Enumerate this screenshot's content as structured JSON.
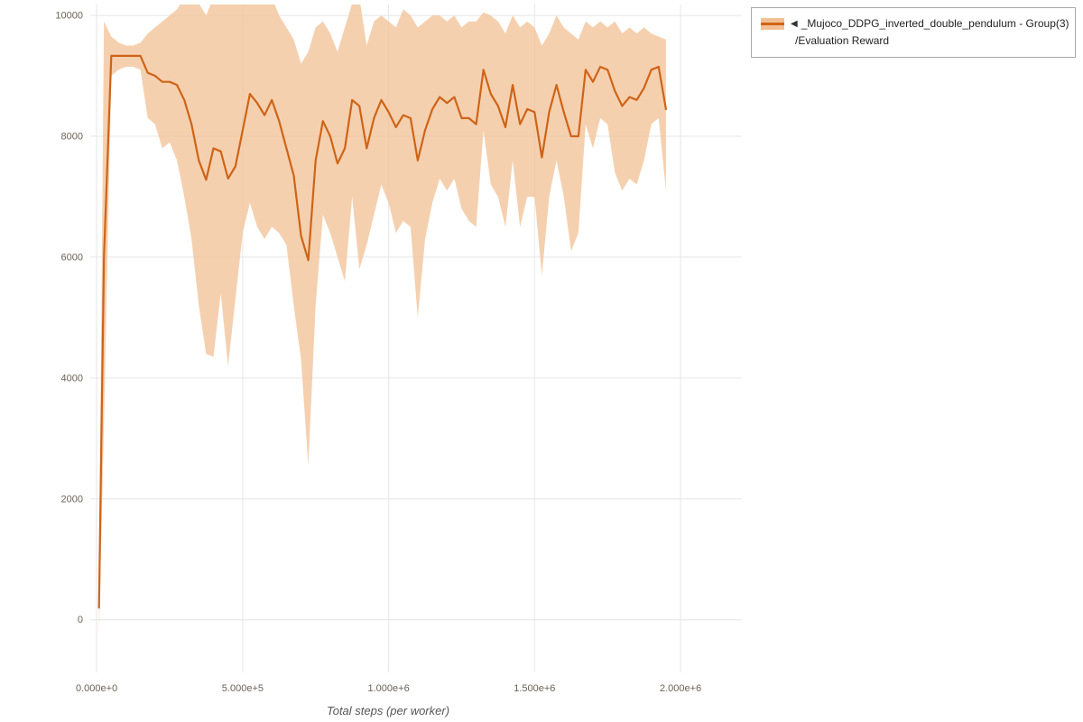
{
  "page": {
    "background": "#ffffff"
  },
  "legend": {
    "collapse_icon": "◀",
    "series_label": "_Mujoco_DDPG_inverted_double_pendulum - Group(3)",
    "metric_label": "/Evaluation Reward"
  },
  "axes": {
    "x_title": "Total steps (per worker)",
    "x_tick_labels": [
      "0.000e+0",
      "5.000e+5",
      "1.000e+6",
      "1.500e+6",
      "2.000e+6"
    ],
    "x_tick_values": [
      0,
      500000,
      1000000,
      1500000,
      2000000
    ],
    "y_tick_labels": [
      "0",
      "2000",
      "4000",
      "6000",
      "8000",
      "10000"
    ],
    "y_tick_values": [
      0,
      2000,
      4000,
      6000,
      8000,
      10000
    ]
  },
  "chart_data": {
    "type": "line",
    "title": "",
    "xlabel": "Total steps (per worker)",
    "ylabel": "",
    "grid": true,
    "legend_position": "top-right",
    "line_color": "#cf6417",
    "band_color": "#f2c094",
    "xlim": [
      -22000,
      2210000
    ],
    "ylim": [
      -870,
      10180
    ],
    "series": [
      {
        "name": "_Mujoco_DDPG_inverted_double_pendulum - Group(3) /Evaluation Reward",
        "x": [
          8000,
          25000,
          50000,
          75000,
          100000,
          125000,
          150000,
          175000,
          200000,
          225000,
          250000,
          275000,
          300000,
          325000,
          350000,
          375000,
          400000,
          425000,
          450000,
          475000,
          500000,
          525000,
          550000,
          575000,
          600000,
          625000,
          650000,
          675000,
          700000,
          725000,
          750000,
          775000,
          800000,
          825000,
          850000,
          875000,
          900000,
          925000,
          950000,
          975000,
          1000000,
          1025000,
          1050000,
          1075000,
          1100000,
          1125000,
          1150000,
          1175000,
          1200000,
          1225000,
          1250000,
          1275000,
          1300000,
          1325000,
          1350000,
          1375000,
          1400000,
          1425000,
          1450000,
          1475000,
          1500000,
          1525000,
          1550000,
          1575000,
          1600000,
          1625000,
          1650000,
          1675000,
          1700000,
          1725000,
          1750000,
          1775000,
          1800000,
          1825000,
          1850000,
          1875000,
          1900000,
          1925000,
          1950000
        ],
        "mean": [
          200,
          6000,
          9330,
          9330,
          9330,
          9330,
          9330,
          9050,
          9000,
          8900,
          8900,
          8850,
          8600,
          8200,
          7600,
          7280,
          7800,
          7750,
          7300,
          7500,
          8100,
          8700,
          8550,
          8350,
          8600,
          8250,
          7800,
          7350,
          6350,
          5950,
          7600,
          8250,
          8000,
          7550,
          7800,
          8600,
          8500,
          7800,
          8300,
          8600,
          8400,
          8150,
          8350,
          8300,
          7600,
          8100,
          8450,
          8650,
          8550,
          8650,
          8300,
          8300,
          8200,
          9100,
          8700,
          8500,
          8150,
          8850,
          8200,
          8450,
          8400,
          7650,
          8400,
          8850,
          8400,
          8000,
          8000,
          9100,
          8900,
          9150,
          9100,
          8750,
          8500,
          8650,
          8600,
          8800,
          9100,
          9150,
          8450
        ],
        "lower": [
          -250,
          3200,
          9000,
          9100,
          9150,
          9150,
          9100,
          8300,
          8200,
          7800,
          7900,
          7600,
          7000,
          6300,
          5200,
          4400,
          4350,
          5400,
          4200,
          5300,
          6400,
          6900,
          6500,
          6300,
          6500,
          6400,
          6200,
          5200,
          4300,
          2550,
          5200,
          6700,
          6400,
          6000,
          5600,
          7000,
          5800,
          6200,
          6700,
          7200,
          6900,
          6400,
          6600,
          6500,
          5000,
          6300,
          6900,
          7300,
          7100,
          7300,
          6800,
          6600,
          6500,
          8100,
          7200,
          7000,
          6500,
          7600,
          6500,
          7000,
          7000,
          5700,
          7000,
          7600,
          7000,
          6100,
          6400,
          8200,
          7800,
          8300,
          8200,
          7400,
          7100,
          7300,
          7200,
          7600,
          8200,
          8300,
          7100
        ],
        "upper": [
          700,
          9900,
          9650,
          9550,
          9500,
          9500,
          9550,
          9700,
          9800,
          9900,
          10000,
          10100,
          10300,
          10300,
          10200,
          10000,
          10300,
          10300,
          10200,
          10300,
          10300,
          10300,
          10300,
          10200,
          10300,
          10000,
          9800,
          9600,
          9200,
          9400,
          9800,
          9900,
          9700,
          9400,
          9800,
          10200,
          10300,
          9500,
          9900,
          10000,
          9900,
          9800,
          10100,
          10000,
          9800,
          9900,
          10000,
          10000,
          9900,
          10000,
          9800,
          9900,
          9900,
          10050,
          10000,
          9900,
          9700,
          10000,
          9800,
          9900,
          9800,
          9500,
          9700,
          10000,
          9800,
          9700,
          9600,
          9900,
          9800,
          9900,
          9800,
          9900,
          9700,
          9800,
          9700,
          9800,
          9700,
          9650,
          9600
        ]
      }
    ]
  }
}
